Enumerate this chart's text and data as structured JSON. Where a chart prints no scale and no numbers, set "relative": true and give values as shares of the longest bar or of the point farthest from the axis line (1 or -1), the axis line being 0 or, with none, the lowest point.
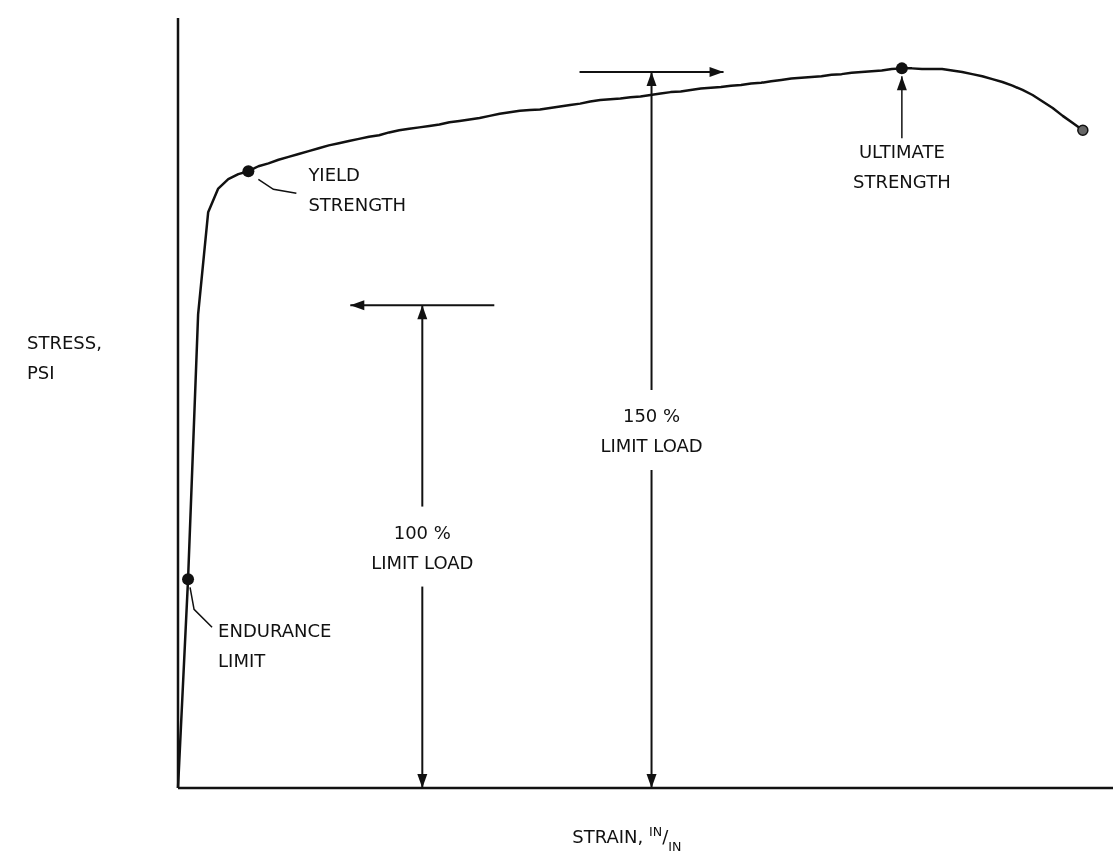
{
  "chart_data": {
    "type": "line",
    "relative": true,
    "xlabel": "STRAIN, $^{IN}$/$_{IN}$",
    "ylabel": "STRESS,\nPSI",
    "categories": [
      null,
      null,
      null,
      null,
      null,
      null,
      null,
      null,
      null,
      null,
      null,
      null,
      null,
      null,
      null,
      null,
      null,
      null,
      null,
      null,
      null,
      null,
      null,
      null,
      null,
      null,
      null,
      null,
      null,
      null,
      null,
      null,
      null,
      null,
      null,
      null,
      null,
      null,
      null,
      null,
      null,
      null,
      null,
      null,
      null,
      null,
      null,
      null,
      null,
      null,
      null,
      null,
      null,
      null,
      null,
      null,
      null,
      null,
      null,
      null,
      null,
      null,
      null,
      null,
      null,
      null,
      null,
      null,
      null,
      null,
      null,
      null,
      null,
      null,
      null,
      null,
      null,
      null,
      null,
      null,
      null,
      null,
      null,
      null,
      null,
      null,
      null,
      null,
      null,
      null,
      null,
      null,
      null,
      null
    ],
    "series": [
      {
        "color": "#111111",
        "values": [
          0,
          0.29,
          0.658,
          0.8,
          0.833,
          0.846,
          0.853,
          0.857,
          0.864,
          0.868,
          0.873,
          0.877,
          0.881,
          0.885,
          0.889,
          0.893,
          0.896,
          0.899,
          0.902,
          0.905,
          0.907,
          0.911,
          0.914,
          0.916,
          0.918,
          0.92,
          0.922,
          0.925,
          0.927,
          0.929,
          0.931,
          0.934,
          0.937,
          0.939,
          0.941,
          0.942,
          0.943,
          0.945,
          0.947,
          0.949,
          0.951,
          0.954,
          0.956,
          0.957,
          0.958,
          0.96,
          0.961,
          0.963,
          0.965,
          0.967,
          0.968,
          0.97,
          0.972,
          0.973,
          0.974,
          0.976,
          0.977,
          0.979,
          0.98,
          0.982,
          0.984,
          0.986,
          0.987,
          0.988,
          0.989,
          0.991,
          0.992,
          0.994,
          0.995,
          0.996,
          0.997,
          0.999,
          1,
          1,
          0.999,
          0.999,
          0.999,
          0.997,
          0.995,
          0.992,
          0.989,
          0.985,
          0.981,
          0.976,
          0.97,
          0.963,
          0.954,
          0.945,
          0.934,
          0.924,
          0.914,
          null,
          null,
          null
        ]
      }
    ],
    "annotations": [
      "ENDURANCE\nLIMIT",
      "YIELD\nSTRENGTH",
      "ULTIMATE\nSTRENGTH",
      "100 %\nLIMIT LOAD",
      "150 %\nLIMIT LOAD"
    ]
  }
}
